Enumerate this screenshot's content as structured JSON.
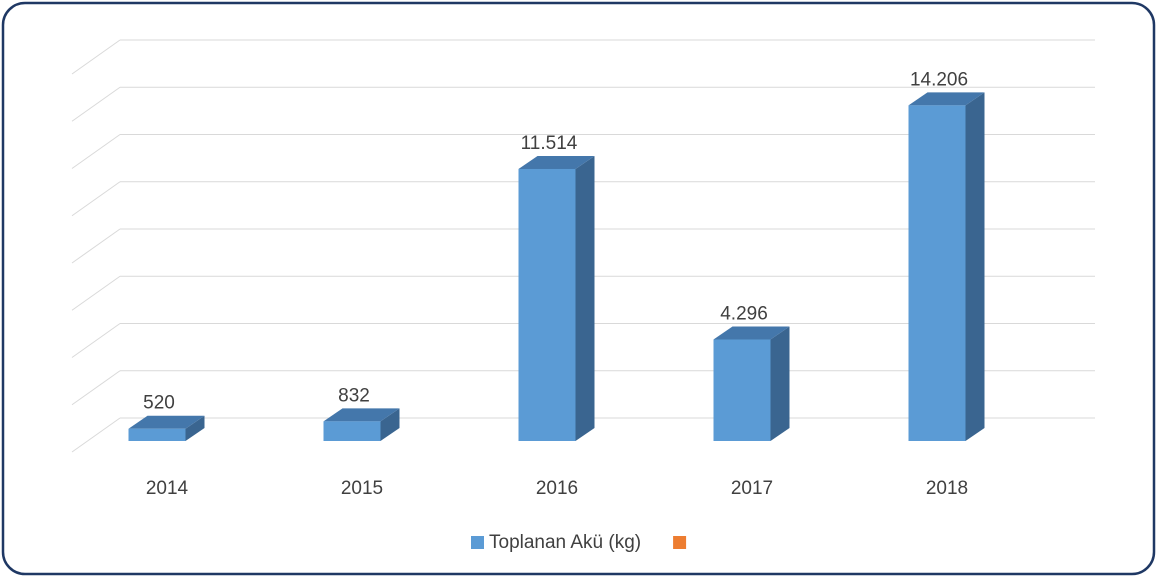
{
  "chart_data": {
    "type": "bar3d",
    "categories": [
      "2014",
      "2015",
      "2016",
      "2017",
      "2018"
    ],
    "series": [
      {
        "name": "Toplanan Akü (kg)",
        "color": "#5b9bd5",
        "values": [
          520,
          832,
          11514,
          4296,
          14206
        ],
        "value_labels": [
          "520",
          "832",
          "11.514",
          "4.296",
          "14.206"
        ]
      },
      {
        "name": null,
        "color": "#ed7d31",
        "values": [
          null,
          null,
          null,
          null,
          null
        ]
      }
    ],
    "ylim": [
      0,
      16000
    ],
    "yticks": [
      0,
      2000,
      4000,
      6000,
      8000,
      10000,
      12000,
      14000,
      16000
    ],
    "grid": true,
    "legend": "bottom"
  }
}
